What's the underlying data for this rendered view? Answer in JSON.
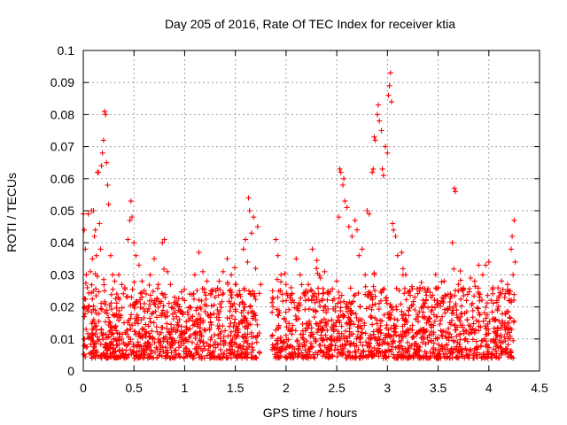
{
  "chart_data": {
    "type": "scatter",
    "title": "Day 205 of 2016, Rate Of TEC Index for receiver ktia",
    "xlabel": "GPS time / hours",
    "ylabel": "ROTI / TECUs",
    "xlim": [
      0,
      4.5
    ],
    "ylim": [
      0,
      0.1
    ],
    "xticks": [
      0,
      0.5,
      1,
      1.5,
      2,
      2.5,
      3,
      3.5,
      4,
      4.5
    ],
    "xtick_labels": [
      "0",
      "0.5",
      "1",
      "1.5",
      "2",
      "2.5",
      "3",
      "3.5",
      "4",
      "4.5"
    ],
    "yticks": [
      0,
      0.01,
      0.02,
      0.03,
      0.04,
      0.05,
      0.06,
      0.07,
      0.08,
      0.09,
      0.1
    ],
    "ytick_labels": [
      "0",
      "0.01",
      "0.02",
      "0.03",
      "0.04",
      "0.05",
      "0.06",
      "0.07",
      "0.08",
      "0.09",
      "0.1"
    ],
    "grid": true,
    "marker": "+",
    "color": "#ff0000",
    "series": [
      {
        "name": "ROTI",
        "points": [
          [
            0.0,
            0.049
          ],
          [
            0.01,
            0.044
          ],
          [
            0.02,
            0.038
          ],
          [
            0.03,
            0.03
          ],
          [
            0.04,
            0.026
          ],
          [
            0.05,
            0.049
          ],
          [
            0.06,
            0.02
          ],
          [
            0.07,
            0.031
          ],
          [
            0.08,
            0.05
          ],
          [
            0.09,
            0.035
          ],
          [
            0.1,
            0.05
          ],
          [
            0.11,
            0.042
          ],
          [
            0.12,
            0.044
          ],
          [
            0.13,
            0.036
          ],
          [
            0.14,
            0.062
          ],
          [
            0.15,
            0.062
          ],
          [
            0.16,
            0.046
          ],
          [
            0.17,
            0.038
          ],
          [
            0.18,
            0.064
          ],
          [
            0.19,
            0.068
          ],
          [
            0.2,
            0.072
          ],
          [
            0.21,
            0.081
          ],
          [
            0.22,
            0.08
          ],
          [
            0.23,
            0.065
          ],
          [
            0.24,
            0.058
          ],
          [
            0.25,
            0.052
          ],
          [
            0.27,
            0.036
          ],
          [
            0.29,
            0.03
          ],
          [
            0.31,
            0.028
          ],
          [
            0.33,
            0.024
          ],
          [
            0.35,
            0.03
          ],
          [
            0.38,
            0.027
          ],
          [
            0.41,
            0.026
          ],
          [
            0.44,
            0.041
          ],
          [
            0.46,
            0.047
          ],
          [
            0.47,
            0.053
          ],
          [
            0.48,
            0.048
          ],
          [
            0.5,
            0.04
          ],
          [
            0.52,
            0.036
          ],
          [
            0.55,
            0.033
          ],
          [
            0.58,
            0.028
          ],
          [
            0.62,
            0.024
          ],
          [
            0.66,
            0.03
          ],
          [
            0.7,
            0.035
          ],
          [
            0.74,
            0.027
          ],
          [
            0.78,
            0.04
          ],
          [
            0.8,
            0.041
          ],
          [
            0.83,
            0.031
          ],
          [
            0.86,
            0.027
          ],
          [
            0.9,
            0.023
          ],
          [
            0.95,
            0.02
          ],
          [
            1.0,
            0.022
          ],
          [
            1.05,
            0.024
          ],
          [
            1.1,
            0.03
          ],
          [
            1.14,
            0.037
          ],
          [
            1.18,
            0.031
          ],
          [
            1.22,
            0.028
          ],
          [
            1.26,
            0.025
          ],
          [
            1.3,
            0.023
          ],
          [
            1.34,
            0.028
          ],
          [
            1.38,
            0.031
          ],
          [
            1.42,
            0.035
          ],
          [
            1.46,
            0.03
          ],
          [
            1.5,
            0.027
          ],
          [
            1.54,
            0.025
          ],
          [
            1.58,
            0.038
          ],
          [
            1.6,
            0.041
          ],
          [
            1.62,
            0.034
          ],
          [
            1.63,
            0.054
          ],
          [
            1.64,
            0.05
          ],
          [
            1.66,
            0.043
          ],
          [
            1.68,
            0.048
          ],
          [
            1.7,
            0.032
          ],
          [
            1.72,
            0.045
          ],
          [
            1.75,
            0.027
          ],
          [
            1.9,
            0.041
          ],
          [
            1.92,
            0.036
          ],
          [
            1.95,
            0.03
          ],
          [
            2.0,
            0.027
          ],
          [
            2.05,
            0.026
          ],
          [
            2.1,
            0.035
          ],
          [
            2.14,
            0.03
          ],
          [
            2.18,
            0.024
          ],
          [
            2.22,
            0.027
          ],
          [
            2.26,
            0.038
          ],
          [
            2.3,
            0.032
          ],
          [
            2.34,
            0.029
          ],
          [
            2.38,
            0.031
          ],
          [
            2.42,
            0.024
          ],
          [
            2.46,
            0.022
          ],
          [
            2.5,
            0.028
          ],
          [
            2.52,
            0.048
          ],
          [
            2.53,
            0.063
          ],
          [
            2.54,
            0.062
          ],
          [
            2.56,
            0.058
          ],
          [
            2.57,
            0.06
          ],
          [
            2.58,
            0.053
          ],
          [
            2.6,
            0.051
          ],
          [
            2.62,
            0.045
          ],
          [
            2.65,
            0.042
          ],
          [
            2.68,
            0.047
          ],
          [
            2.7,
            0.044
          ],
          [
            2.72,
            0.036
          ],
          [
            2.75,
            0.038
          ],
          [
            2.78,
            0.03
          ],
          [
            2.8,
            0.05
          ],
          [
            2.82,
            0.049
          ],
          [
            2.85,
            0.062
          ],
          [
            2.86,
            0.063
          ],
          [
            2.87,
            0.073
          ],
          [
            2.88,
            0.072
          ],
          [
            2.9,
            0.08
          ],
          [
            2.91,
            0.083
          ],
          [
            2.92,
            0.078
          ],
          [
            2.94,
            0.075
          ],
          [
            2.95,
            0.063
          ],
          [
            2.96,
            0.061
          ],
          [
            2.98,
            0.07
          ],
          [
            3.0,
            0.068
          ],
          [
            3.01,
            0.086
          ],
          [
            3.02,
            0.089
          ],
          [
            3.03,
            0.093
          ],
          [
            3.04,
            0.084
          ],
          [
            3.05,
            0.046
          ],
          [
            3.06,
            0.044
          ],
          [
            3.08,
            0.042
          ],
          [
            3.1,
            0.036
          ],
          [
            3.14,
            0.037
          ],
          [
            3.18,
            0.03
          ],
          [
            3.22,
            0.025
          ],
          [
            3.27,
            0.023
          ],
          [
            3.32,
            0.026
          ],
          [
            3.38,
            0.022
          ],
          [
            3.44,
            0.02
          ],
          [
            3.5,
            0.026
          ],
          [
            3.56,
            0.028
          ],
          [
            3.62,
            0.024
          ],
          [
            3.64,
            0.04
          ],
          [
            3.66,
            0.057
          ],
          [
            3.67,
            0.056
          ],
          [
            3.7,
            0.027
          ],
          [
            3.74,
            0.025
          ],
          [
            3.78,
            0.022
          ],
          [
            3.82,
            0.029
          ],
          [
            3.86,
            0.028
          ],
          [
            3.9,
            0.033
          ],
          [
            3.94,
            0.03
          ],
          [
            3.97,
            0.033
          ],
          [
            4.0,
            0.034
          ],
          [
            4.04,
            0.026
          ],
          [
            4.08,
            0.022
          ],
          [
            4.12,
            0.024
          ],
          [
            4.16,
            0.015
          ],
          [
            4.2,
            0.025
          ],
          [
            4.22,
            0.038
          ],
          [
            4.23,
            0.042
          ],
          [
            4.24,
            0.03
          ],
          [
            4.25,
            0.047
          ],
          [
            4.26,
            0.034
          ]
        ]
      }
    ]
  }
}
